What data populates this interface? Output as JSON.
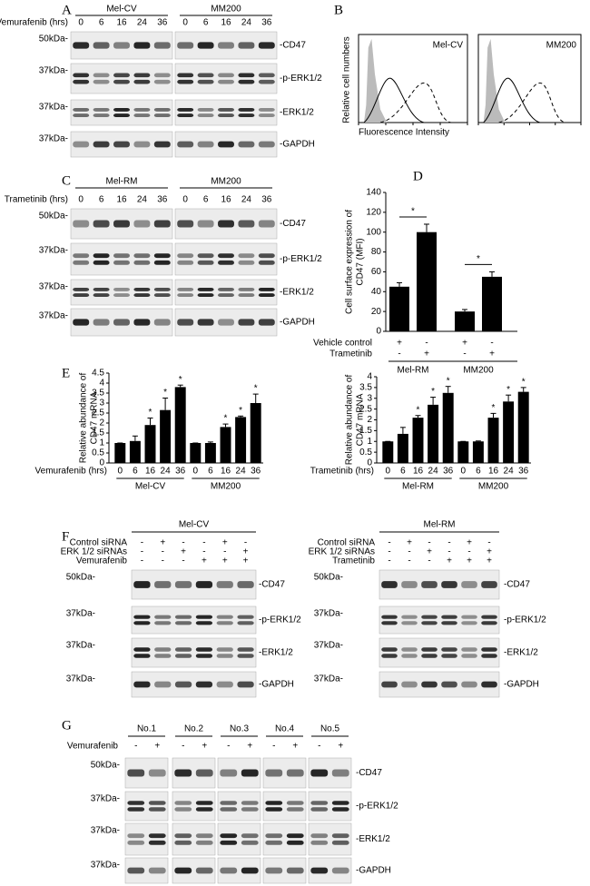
{
  "panel_A": {
    "label": "A",
    "treatment": "Vemurafenib (hrs)",
    "groups": [
      "Mel-CV",
      "MM200"
    ],
    "times": [
      "0",
      "6",
      "16",
      "24",
      "36"
    ],
    "rows": [
      {
        "marker": "50kDa-",
        "protein": "-CD47"
      },
      {
        "marker": "37kDa-",
        "protein": "-p-ERK1/2"
      },
      {
        "marker": "37kDa-",
        "protein": "-ERK1/2"
      },
      {
        "marker": "37kDa-",
        "protein": "-GAPDH"
      }
    ]
  },
  "panel_B": {
    "label": "B",
    "ylabel": "Relative cell numbers",
    "xlabel": "Fluorescence Intensity",
    "plots": [
      "Mel-CV",
      "MM200"
    ]
  },
  "panel_C": {
    "label": "C",
    "treatment": "Trametinib (hrs)",
    "groups": [
      "Mel-RM",
      "MM200"
    ],
    "times": [
      "0",
      "6",
      "16",
      "24",
      "36"
    ],
    "rows": [
      {
        "marker": "50kDa-",
        "protein": "-CD47"
      },
      {
        "marker": "37kDa-",
        "protein": "-p-ERK1/2"
      },
      {
        "marker": "37kDa-",
        "protein": "-ERK1/2"
      },
      {
        "marker": "37kDa-",
        "protein": "-GAPDH"
      }
    ]
  },
  "chart_data": [
    {
      "type": "bar",
      "panel_label": "D",
      "ylabel": [
        "Cell surface expression of",
        "CD47 (MFI)"
      ],
      "values": [
        45,
        100,
        20,
        55
      ],
      "errors": [
        4,
        8,
        2,
        5
      ],
      "color": "#000000",
      "ylim": [
        0,
        140
      ],
      "yticks": [
        0,
        20,
        40,
        60,
        80,
        100,
        120,
        140
      ],
      "treatments": [
        {
          "label": "Vehicle control",
          "signs": [
            "+",
            "-",
            "+",
            "-"
          ]
        },
        {
          "label": "Trametinib",
          "signs": [
            "-",
            "+",
            "-",
            "+"
          ]
        }
      ],
      "groups": [
        "Mel-RM",
        "MM200"
      ],
      "annotations": [
        "*",
        "*"
      ]
    },
    {
      "type": "bar",
      "panel_label": "E",
      "ylabel": [
        "Relative abundance of",
        "CD47 mRNA"
      ],
      "xlabel": "Vemurafenib (hrs)",
      "categories": [
        "0",
        "6",
        "16",
        "24",
        "36",
        "0",
        "6",
        "16",
        "24",
        "36"
      ],
      "values": [
        1,
        1.1,
        1.9,
        2.65,
        3.8,
        1,
        1,
        1.8,
        2.3,
        3.0
      ],
      "errors": [
        0,
        0.25,
        0.35,
        0.6,
        0.1,
        0,
        0.05,
        0.15,
        0.05,
        0.45
      ],
      "annotations": [
        null,
        null,
        "*",
        "*",
        "*",
        null,
        null,
        "*",
        "*",
        "*"
      ],
      "color": "#000000",
      "ylim": [
        0,
        4.5
      ],
      "yticks": [
        0,
        0.5,
        1,
        1.5,
        2,
        2.5,
        3,
        3.5,
        4,
        4.5
      ],
      "groups": [
        "Mel-CV",
        "MM200"
      ]
    },
    {
      "type": "bar",
      "ylabel": [
        "Relative abundance of",
        "CD47 mRNA"
      ],
      "xlabel": "Trametinib (hrs)",
      "categories": [
        "0",
        "6",
        "16",
        "24",
        "36",
        "0",
        "6",
        "16",
        "24",
        "36"
      ],
      "values": [
        1,
        1.35,
        2.1,
        2.7,
        3.25,
        1,
        1,
        2.1,
        2.85,
        3.3
      ],
      "errors": [
        0,
        0.3,
        0.1,
        0.35,
        0.3,
        0,
        0.02,
        0.2,
        0.3,
        0.2
      ],
      "annotations": [
        null,
        null,
        "*",
        "*",
        "*",
        null,
        null,
        "*",
        "*",
        "*"
      ],
      "color": "#000000",
      "ylim": [
        0,
        4
      ],
      "yticks": [
        0,
        0.5,
        1,
        1.5,
        2,
        2.5,
        3,
        3.5,
        4
      ],
      "groups": [
        "Mel-RM",
        "MM200"
      ]
    }
  ],
  "panel_F": {
    "label": "F",
    "blots": [
      {
        "group": "Mel-CV",
        "conditions": [
          {
            "label": "Control siRNA",
            "signs": [
              "-",
              "+",
              "-",
              "-",
              "+",
              "-"
            ]
          },
          {
            "label": "ERK 1/2 siRNAs",
            "signs": [
              "-",
              "-",
              "+",
              "-",
              "-",
              "+"
            ]
          },
          {
            "label": "Vemurafenib",
            "signs": [
              "-",
              "-",
              "-",
              "+",
              "+",
              "+"
            ]
          }
        ],
        "rows": [
          {
            "marker": "50kDa-",
            "protein": "-CD47"
          },
          {
            "marker": "37kDa-",
            "protein": "-p-ERK1/2"
          },
          {
            "marker": "37kDa-",
            "protein": "-ERK1/2"
          },
          {
            "marker": "37kDa-",
            "protein": "-GAPDH"
          }
        ]
      },
      {
        "group": "Mel-RM",
        "conditions": [
          {
            "label": "Control siRNA",
            "signs": [
              "-",
              "+",
              "-",
              "-",
              "+",
              "-"
            ]
          },
          {
            "label": "ERK 1/2 siRNAs",
            "signs": [
              "-",
              "-",
              "+",
              "-",
              "-",
              "+"
            ]
          },
          {
            "label": "Trametinib",
            "signs": [
              "-",
              "-",
              "-",
              "+",
              "+",
              "+"
            ]
          }
        ],
        "rows": [
          {
            "marker": "50kDa-",
            "protein": "-CD47"
          },
          {
            "marker": "37kDa-",
            "protein": "-p-ERK1/2"
          },
          {
            "marker": "37kDa-",
            "protein": "-ERK1/2"
          },
          {
            "marker": "37kDa-",
            "protein": "-GAPDH"
          }
        ]
      }
    ]
  },
  "panel_G": {
    "label": "G",
    "groups": [
      "No.1",
      "No.2",
      "No.3",
      "No.4",
      "No.5"
    ],
    "treatment": "Vemurafenib",
    "signs": [
      "-",
      "+"
    ],
    "rows": [
      {
        "marker": "50kDa-",
        "protein": "-CD47"
      },
      {
        "marker": "37kDa-",
        "protein": "-p-ERK1/2"
      },
      {
        "marker": "37kDa-",
        "protein": "-ERK1/2"
      },
      {
        "marker": "37kDa-",
        "protein": "-GAPDH"
      }
    ]
  }
}
